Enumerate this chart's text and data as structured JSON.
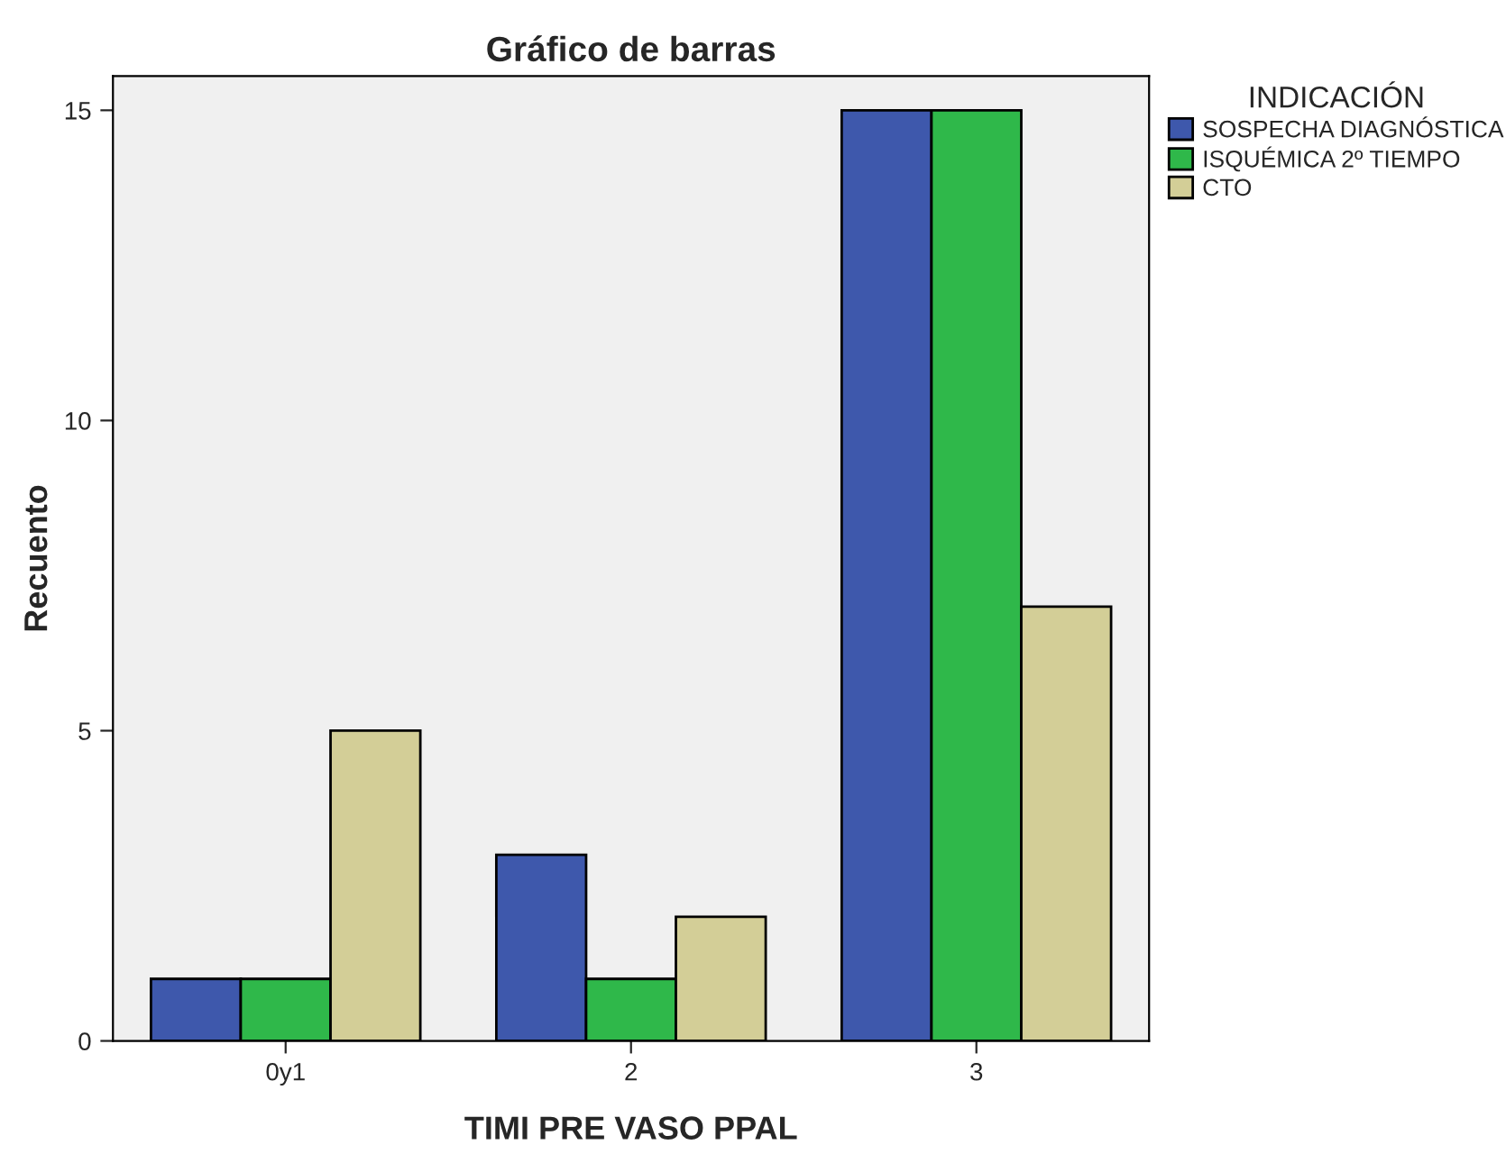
{
  "chart_data": {
    "type": "bar",
    "title": "Gráfico de barras",
    "xlabel": "TIMI PRE VASO PPAL",
    "ylabel": "Recuento",
    "legend_title": "INDICACIÓN",
    "categories": [
      "0y1",
      "2",
      "3"
    ],
    "series": [
      {
        "name": "SOSPECHA DIAGNÓSTICA",
        "color": "#3e58ac",
        "values": [
          1,
          3,
          15
        ]
      },
      {
        "name": "ISQUÉMICA 2º TIEMPO",
        "color": "#2fb84a",
        "values": [
          1,
          1,
          15
        ]
      },
      {
        "name": "CTO",
        "color": "#d3ce97",
        "values": [
          5,
          2,
          7
        ]
      }
    ],
    "ylim": [
      0,
      15.55
    ],
    "yticks": [
      0,
      5,
      10,
      15
    ],
    "grid": false,
    "legend": "right"
  }
}
